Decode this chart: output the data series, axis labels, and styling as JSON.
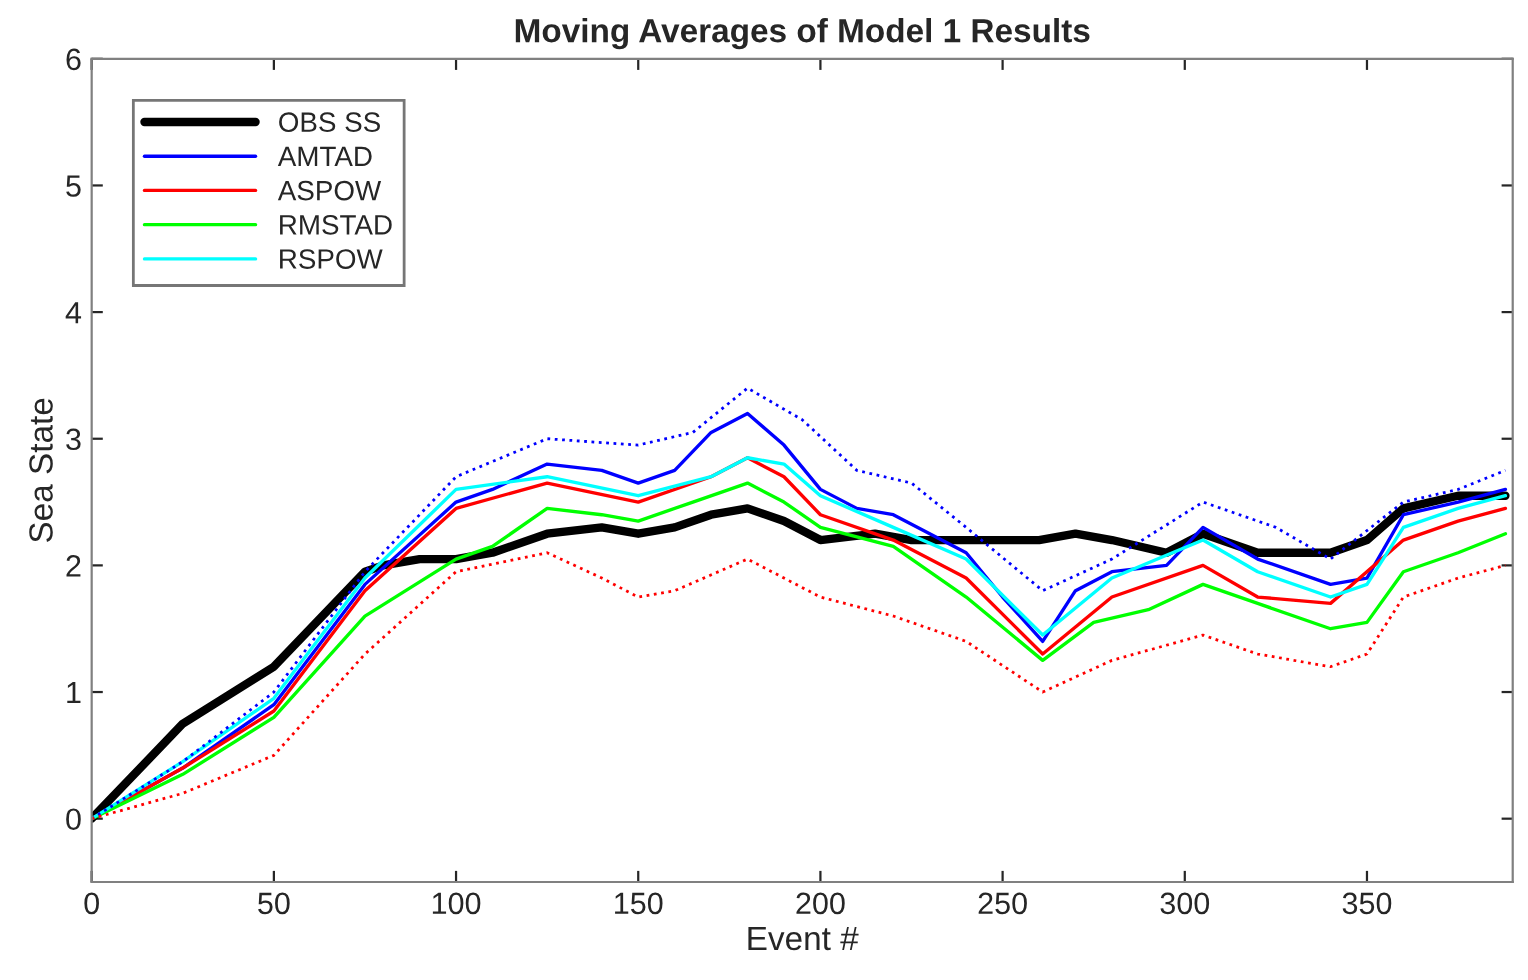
{
  "chart_data": {
    "type": "line",
    "title": "Moving Averages of Model 1 Results",
    "xlabel": "Event #",
    "ylabel": "Sea State",
    "xlim": [
      0,
      390
    ],
    "ylim": [
      -0.5,
      6
    ],
    "xticks": [
      0,
      50,
      100,
      150,
      200,
      250,
      300,
      350
    ],
    "yticks": [
      0,
      1,
      2,
      3,
      4,
      5,
      6
    ],
    "grid": false,
    "legend": "top left",
    "marker": "none",
    "series": [
      {
        "name": "OBS SS",
        "color": "#000000",
        "line_style": "solid",
        "x": [
          0,
          25,
          50,
          75,
          80,
          90,
          100,
          110,
          125,
          140,
          150,
          160,
          170,
          180,
          190,
          200,
          215,
          225,
          240,
          260,
          270,
          280,
          295,
          305,
          320,
          340,
          350,
          360,
          375,
          388
        ],
        "values": [
          0,
          0.75,
          1.2,
          1.95,
          2.0,
          2.05,
          2.05,
          2.1,
          2.25,
          2.3,
          2.25,
          2.3,
          2.4,
          2.45,
          2.35,
          2.2,
          2.25,
          2.2,
          2.2,
          2.2,
          2.25,
          2.2,
          2.1,
          2.25,
          2.1,
          2.1,
          2.2,
          2.45,
          2.55,
          2.55
        ]
      },
      {
        "name": "AMTAD",
        "color": "#0000ff",
        "line_style": "solid",
        "x": [
          0,
          25,
          50,
          75,
          100,
          110,
          125,
          140,
          150,
          160,
          170,
          180,
          190,
          200,
          210,
          220,
          240,
          250,
          261,
          270,
          280,
          295,
          305,
          320,
          340,
          350,
          360,
          375,
          388
        ],
        "values": [
          0,
          0.4,
          0.9,
          1.85,
          2.5,
          2.6,
          2.8,
          2.75,
          2.65,
          2.75,
          3.05,
          3.2,
          2.95,
          2.6,
          2.45,
          2.4,
          2.1,
          1.75,
          1.4,
          1.8,
          1.95,
          2.0,
          2.3,
          2.05,
          1.85,
          1.9,
          2.4,
          2.5,
          2.6
        ]
      },
      {
        "name": "ASPOW",
        "color": "#ff0000",
        "line_style": "solid",
        "x": [
          0,
          25,
          50,
          75,
          100,
          125,
          150,
          170,
          180,
          190,
          200,
          220,
          240,
          261,
          280,
          305,
          320,
          340,
          360,
          375,
          388
        ],
        "values": [
          0,
          0.4,
          0.85,
          1.8,
          2.45,
          2.65,
          2.5,
          2.7,
          2.85,
          2.7,
          2.4,
          2.2,
          1.9,
          1.3,
          1.75,
          2.0,
          1.75,
          1.7,
          2.2,
          2.35,
          2.45
        ]
      },
      {
        "name": "RMSTAD",
        "color": "#00ff00",
        "line_style": "solid",
        "x": [
          0,
          25,
          50,
          75,
          100,
          110,
          125,
          140,
          150,
          165,
          180,
          190,
          200,
          220,
          240,
          261,
          275,
          290,
          305,
          320,
          340,
          350,
          360,
          375,
          388
        ],
        "values": [
          0,
          0.35,
          0.8,
          1.6,
          2.05,
          2.15,
          2.45,
          2.4,
          2.35,
          2.5,
          2.65,
          2.5,
          2.3,
          2.15,
          1.75,
          1.25,
          1.55,
          1.65,
          1.85,
          1.7,
          1.5,
          1.55,
          1.95,
          2.1,
          2.25
        ]
      },
      {
        "name": "RSPOW",
        "color": "#00ffff",
        "line_style": "solid",
        "x": [
          0,
          25,
          50,
          75,
          100,
          125,
          150,
          170,
          180,
          190,
          200,
          220,
          240,
          261,
          280,
          305,
          320,
          340,
          350,
          360,
          375,
          388
        ],
        "values": [
          0,
          0.45,
          0.95,
          1.9,
          2.6,
          2.7,
          2.55,
          2.7,
          2.85,
          2.8,
          2.55,
          2.3,
          2.05,
          1.45,
          1.9,
          2.2,
          1.95,
          1.75,
          1.85,
          2.3,
          2.45,
          2.55
        ]
      },
      {
        "color": "#0000ff",
        "line_style": "dotted",
        "x": [
          0,
          25,
          50,
          75,
          100,
          125,
          150,
          165,
          180,
          195,
          210,
          225,
          240,
          261,
          280,
          305,
          325,
          340,
          360,
          375,
          388
        ],
        "values": [
          0,
          0.45,
          1.0,
          1.95,
          2.7,
          3.0,
          2.95,
          3.05,
          3.4,
          3.15,
          2.75,
          2.65,
          2.3,
          1.8,
          2.05,
          2.5,
          2.3,
          2.05,
          2.5,
          2.6,
          2.75
        ]
      },
      {
        "color": "#ff0000",
        "line_style": "dotted",
        "x": [
          0,
          25,
          50,
          75,
          100,
          125,
          140,
          150,
          160,
          180,
          190,
          200,
          220,
          240,
          261,
          280,
          305,
          320,
          340,
          350,
          360,
          375,
          388
        ],
        "values": [
          0,
          0.2,
          0.5,
          1.3,
          1.95,
          2.1,
          1.9,
          1.75,
          1.8,
          2.05,
          1.9,
          1.75,
          1.6,
          1.4,
          1.0,
          1.25,
          1.45,
          1.3,
          1.2,
          1.3,
          1.75,
          1.9,
          2.0
        ]
      }
    ]
  }
}
